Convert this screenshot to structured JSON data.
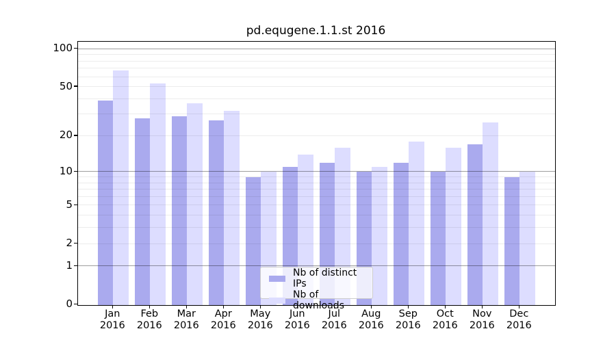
{
  "title": "pd.equgene.1.1.st 2016",
  "colors": {
    "distinct_ips_bar": "#AAAAEE",
    "downloads_bar": "#DDDDFF",
    "major_gridline": "#9e9e9e",
    "minor_gridline": "#ececec",
    "axis": "#000000",
    "legend_border": "#cccccc",
    "legend_background": "rgba(255,255,255,0.8)"
  },
  "legend": {
    "items": [
      {
        "label": "Nb of distinct IPs",
        "color": "#AAAAEE"
      },
      {
        "label": "Nb of downloads",
        "color": "#DDDDFF"
      }
    ]
  },
  "x_axis": {
    "year_line": "2016",
    "months": [
      "Jan",
      "Feb",
      "Mar",
      "Apr",
      "May",
      "Jun",
      "Jul",
      "Aug",
      "Sep",
      "Oct",
      "Nov",
      "Dec"
    ]
  },
  "y_axis": {
    "tick_labels": [
      "0",
      "1",
      "2",
      "5",
      "10",
      "20",
      "50",
      "100"
    ]
  },
  "chart_data": {
    "type": "bar",
    "title": "pd.equgene.1.1.st 2016",
    "categories": [
      "Jan",
      "Feb",
      "Mar",
      "Apr",
      "May",
      "Jun",
      "Jul",
      "Aug",
      "Sep",
      "Oct",
      "Nov",
      "Dec"
    ],
    "category_year": "2016",
    "series": [
      {
        "name": "Nb of distinct IPs",
        "color": "#AAAAEE",
        "values": [
          39,
          28,
          29,
          27,
          9,
          11,
          12,
          10,
          12,
          10,
          17,
          9
        ]
      },
      {
        "name": "Nb of downloads",
        "color": "#DDDDFF",
        "values": [
          68,
          53,
          37,
          32,
          10,
          14,
          16,
          11,
          18,
          16,
          26,
          10
        ]
      }
    ],
    "yscale": "log1p",
    "ylim": [
      0,
      115
    ],
    "yticks": [
      0,
      1,
      2,
      5,
      10,
      20,
      50,
      100
    ],
    "major_gridlines": [
      1,
      10,
      100
    ],
    "minor_gridlines": [
      2,
      3,
      4,
      5,
      6,
      7,
      8,
      9,
      20,
      30,
      40,
      50,
      60,
      70,
      80,
      90
    ],
    "grid": true,
    "grid_above_bars": true,
    "legend_position": "bottom-center",
    "xlabel": "",
    "ylabel": ""
  }
}
